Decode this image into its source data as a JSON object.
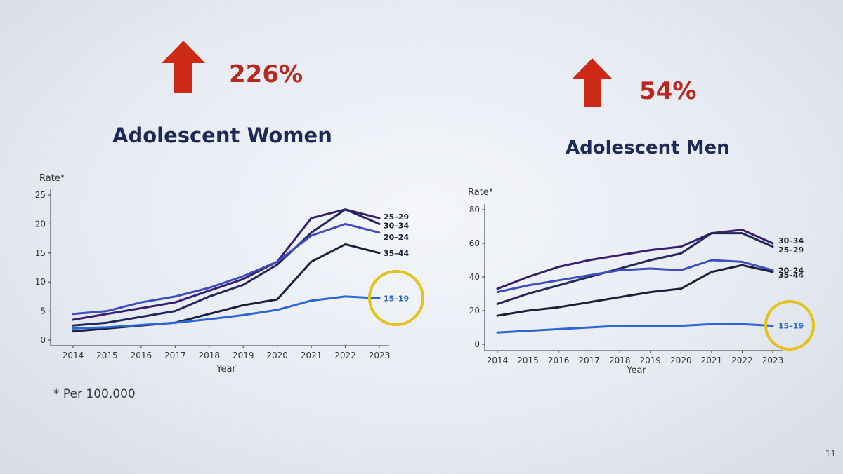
{
  "left": {
    "percent": "226%",
    "title": "Adolescent Women"
  },
  "right": {
    "percent": "54%",
    "title": "Adolescent Men"
  },
  "footnote": "* Per 100,000",
  "page_number": "11",
  "colors": {
    "arrow": "#cc2a17",
    "percent": "#b8281f",
    "title": "#1d2a55",
    "highlight_circle": "#e4c21a"
  },
  "chart_data": [
    {
      "type": "line",
      "title": "",
      "xlabel": "Year",
      "ylabel": "Rate*",
      "x": [
        2014,
        2015,
        2016,
        2017,
        2018,
        2019,
        2020,
        2021,
        2022,
        2023
      ],
      "ylim": [
        0,
        25
      ],
      "yticks": [
        0,
        5,
        10,
        15,
        20,
        25
      ],
      "highlight": "15–19",
      "series": [
        {
          "name": "25–29",
          "color": "#3a1f6e",
          "values": [
            3.5,
            4.5,
            5.5,
            6.5,
            8.5,
            10.5,
            13.5,
            21.0,
            22.5,
            21.0
          ]
        },
        {
          "name": "30–34",
          "color": "#24275a",
          "values": [
            2.5,
            3.0,
            4.0,
            5.0,
            7.5,
            9.5,
            13.0,
            18.5,
            22.5,
            20.0
          ]
        },
        {
          "name": "20–24",
          "color": "#3d4fbe",
          "values": [
            4.5,
            5.0,
            6.5,
            7.5,
            9.0,
            11.0,
            13.5,
            18.0,
            20.0,
            18.5
          ]
        },
        {
          "name": "35–44",
          "color": "#1a1f3a",
          "values": [
            1.5,
            2.0,
            2.5,
            3.0,
            4.5,
            6.0,
            7.0,
            13.5,
            16.5,
            15.0
          ]
        },
        {
          "name": "15–19",
          "color": "#2c66d6",
          "values": [
            2.0,
            2.2,
            2.6,
            3.0,
            3.6,
            4.3,
            5.2,
            6.8,
            7.5,
            7.2
          ]
        }
      ]
    },
    {
      "type": "line",
      "title": "",
      "xlabel": "Year",
      "ylabel": "Rate*",
      "x": [
        2014,
        2015,
        2016,
        2017,
        2018,
        2019,
        2020,
        2021,
        2022,
        2023
      ],
      "ylim": [
        0,
        80
      ],
      "yticks": [
        0,
        20,
        40,
        60,
        80
      ],
      "highlight": "15–19",
      "series": [
        {
          "name": "30–34",
          "color": "#3a1f6e",
          "values": [
            33,
            40,
            46,
            50,
            53,
            56,
            58,
            66,
            68,
            60
          ]
        },
        {
          "name": "25–29",
          "color": "#24275a",
          "values": [
            24,
            30,
            35,
            40,
            45,
            50,
            54,
            66,
            66,
            58
          ]
        },
        {
          "name": "20–24",
          "color": "#3d4fbe",
          "values": [
            31,
            35,
            38,
            41,
            44,
            45,
            44,
            50,
            49,
            44
          ]
        },
        {
          "name": "35–44",
          "color": "#1a1f3a",
          "values": [
            17,
            20,
            22,
            25,
            28,
            31,
            33,
            43,
            47,
            43
          ]
        },
        {
          "name": "15–19",
          "color": "#2c66d6",
          "values": [
            7,
            8,
            9,
            10,
            11,
            11,
            11,
            12,
            12,
            11
          ]
        }
      ]
    }
  ]
}
